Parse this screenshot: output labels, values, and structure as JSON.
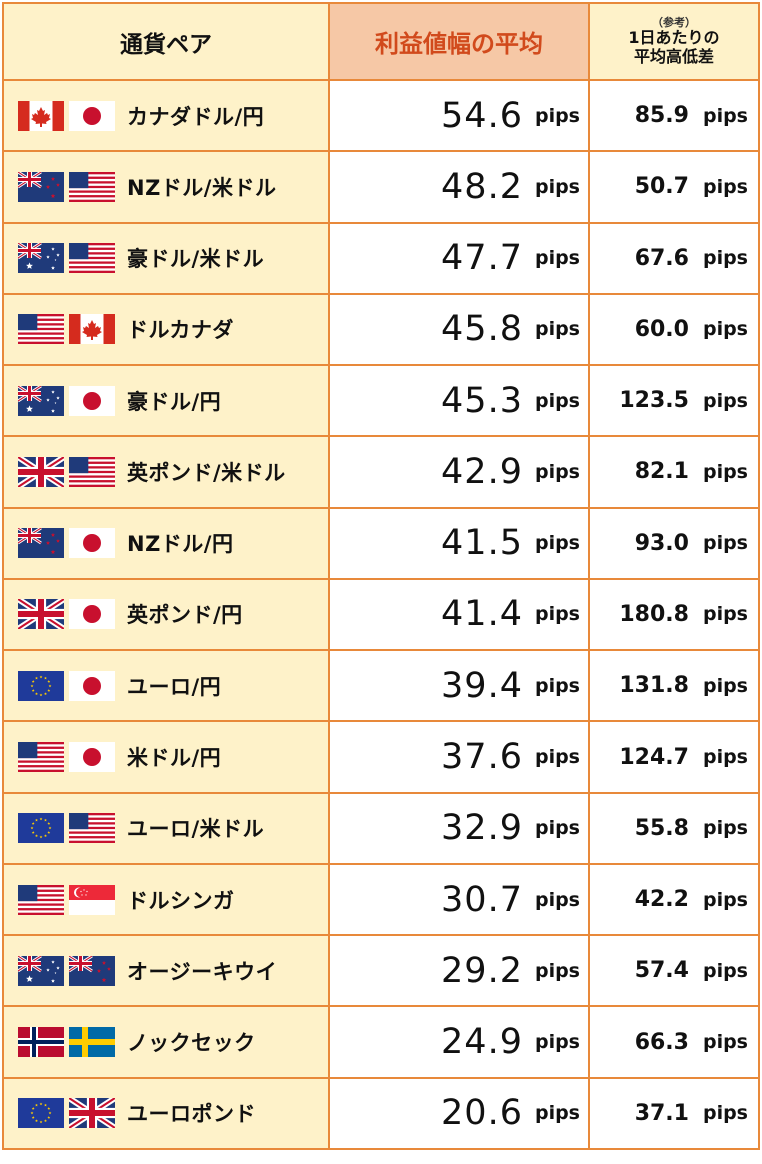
{
  "headers": {
    "pair": "通貨ペア",
    "avg": "利益値幅の平均",
    "range_note": "（参考）",
    "range_line1": "1日あたりの",
    "range_line2": "平均高低差"
  },
  "unit": "pips",
  "rows": [
    {
      "pair": "カナダドル/円",
      "flags": [
        "ca",
        "jp"
      ],
      "avg": "54.6",
      "range": "85.9"
    },
    {
      "pair": "NZドル/米ドル",
      "flags": [
        "nz",
        "us"
      ],
      "avg": "48.2",
      "range": "50.7"
    },
    {
      "pair": "豪ドル/米ドル",
      "flags": [
        "au",
        "us"
      ],
      "avg": "47.7",
      "range": "67.6"
    },
    {
      "pair": "ドルカナダ",
      "flags": [
        "us",
        "ca"
      ],
      "avg": "45.8",
      "range": "60.0"
    },
    {
      "pair": "豪ドル/円",
      "flags": [
        "au",
        "jp"
      ],
      "avg": "45.3",
      "range": "123.5"
    },
    {
      "pair": "英ポンド/米ドル",
      "flags": [
        "gb",
        "us"
      ],
      "avg": "42.9",
      "range": "82.1"
    },
    {
      "pair": "NZドル/円",
      "flags": [
        "nz",
        "jp"
      ],
      "avg": "41.5",
      "range": "93.0"
    },
    {
      "pair": "英ポンド/円",
      "flags": [
        "gb",
        "jp"
      ],
      "avg": "41.4",
      "range": "180.8"
    },
    {
      "pair": "ユーロ/円",
      "flags": [
        "eu",
        "jp"
      ],
      "avg": "39.4",
      "range": "131.8"
    },
    {
      "pair": "米ドル/円",
      "flags": [
        "us",
        "jp"
      ],
      "avg": "37.6",
      "range": "124.7"
    },
    {
      "pair": "ユーロ/米ドル",
      "flags": [
        "eu",
        "us"
      ],
      "avg": "32.9",
      "range": "55.8"
    },
    {
      "pair": "ドルシンガ",
      "flags": [
        "us",
        "sg"
      ],
      "avg": "30.7",
      "range": "42.2"
    },
    {
      "pair": "オージーキウイ",
      "flags": [
        "au",
        "nz"
      ],
      "avg": "29.2",
      "range": "57.4"
    },
    {
      "pair": "ノックセック",
      "flags": [
        "no",
        "se"
      ],
      "avg": "24.9",
      "range": "66.3"
    },
    {
      "pair": "ユーロポンド",
      "flags": [
        "eu",
        "gb"
      ],
      "avg": "20.6",
      "range": "37.1"
    }
  ],
  "colors": {
    "border": "#e8893a",
    "pair_bg": "#fef2c9",
    "avg_header_bg": "#f6c8a6",
    "avg_header_text": "#d14a1c"
  }
}
